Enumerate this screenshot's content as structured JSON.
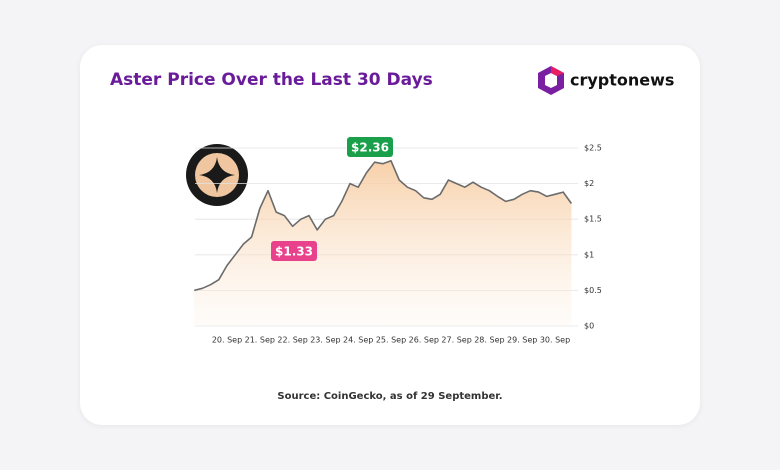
{
  "chart_data": {
    "type": "line",
    "title": "Aster Price Over the Last 30 Days",
    "brand": "cryptonews",
    "source": "Source: CoinGecko, as of 29 September.",
    "annotations": [
      {
        "text": "$2.36",
        "color": "#1aa04a"
      },
      {
        "text": "$1.33",
        "color": "#e8428c"
      }
    ],
    "x": [
      null,
      null,
      null,
      null,
      "20. Sep",
      null,
      null,
      null,
      "21. Sep",
      null,
      null,
      null,
      "22. Sep",
      null,
      null,
      null,
      "23. Sep",
      null,
      null,
      null,
      "24. Sep",
      null,
      null,
      null,
      "25. Sep",
      null,
      null,
      null,
      "26. Sep",
      null,
      null,
      null,
      "27. Sep",
      null,
      null,
      null,
      "28. Sep",
      null,
      null,
      null,
      "29. Sep",
      null,
      null,
      null,
      "30. Sep",
      null,
      null
    ],
    "series": [
      {
        "color": "#6b6b6b",
        "values": [
          0.5,
          0.53,
          0.58,
          0.65,
          0.85,
          1.0,
          1.15,
          1.25,
          1.65,
          1.9,
          1.6,
          1.55,
          1.4,
          1.5,
          1.55,
          1.35,
          1.5,
          1.55,
          1.75,
          2.0,
          1.95,
          2.15,
          2.3,
          2.28,
          2.32,
          2.05,
          1.95,
          1.9,
          1.8,
          1.78,
          1.85,
          2.05,
          2.0,
          1.95,
          2.02,
          1.95,
          1.9,
          1.82,
          1.75,
          1.78,
          1.85,
          1.9,
          1.88,
          1.82,
          1.85,
          1.88,
          1.72
        ]
      }
    ],
    "ylim": [
      0,
      2.5
    ],
    "yticks": [
      {
        "value": 0,
        "label": "$0"
      },
      {
        "value": 0.5,
        "label": "$0.5"
      },
      {
        "value": 1,
        "label": "$1"
      },
      {
        "value": 1.5,
        "label": "$1.5"
      },
      {
        "value": 2,
        "label": "$2"
      },
      {
        "value": 2.5,
        "label": "$2.5"
      }
    ],
    "grid": true
  }
}
